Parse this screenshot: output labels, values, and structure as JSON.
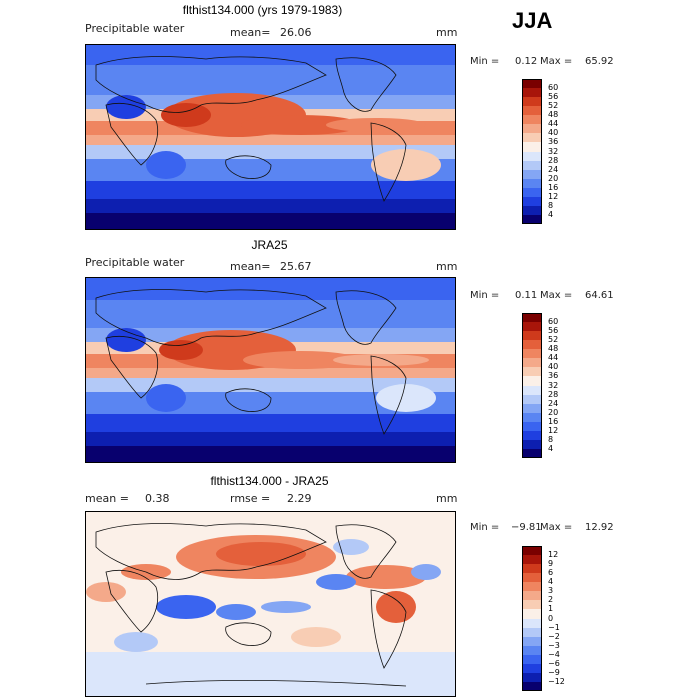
{
  "season": "JJA",
  "chart_data": [
    {
      "type": "heatmap",
      "title": "flthist134.000 (yrs 1979-1983)",
      "variable_label": "Precipitable water",
      "mean_label": "mean=",
      "mean_value": "26.06",
      "units": "mm",
      "min_label": "Min =",
      "min_value": "0.12",
      "max_label": "Max =",
      "max_value": "65.92",
      "colorbar_levels": [
        "4",
        "8",
        "12",
        "16",
        "20",
        "24",
        "28",
        "32",
        "36",
        "40",
        "44",
        "48",
        "52",
        "56",
        "60"
      ],
      "colorbar_colors": [
        "#08006e",
        "#0d1fb0",
        "#1f3fe0",
        "#3a64f0",
        "#5a85f2",
        "#84a6f4",
        "#b3c9f7",
        "#dbe6fb",
        "#fbf0e8",
        "#f8cdb4",
        "#f4a98a",
        "#ef8560",
        "#e4603b",
        "#cf3a1c",
        "#a8150a",
        "#7a0000"
      ]
    },
    {
      "type": "heatmap",
      "title": "JRA25",
      "variable_label": "Precipitable water",
      "mean_label": "mean=",
      "mean_value": "25.67",
      "units": "mm",
      "min_label": "Min =",
      "min_value": "0.11",
      "max_label": "Max =",
      "max_value": "64.61",
      "colorbar_levels": [
        "4",
        "8",
        "12",
        "16",
        "20",
        "24",
        "28",
        "32",
        "36",
        "40",
        "44",
        "48",
        "52",
        "56",
        "60"
      ],
      "colorbar_colors": [
        "#08006e",
        "#0d1fb0",
        "#1f3fe0",
        "#3a64f0",
        "#5a85f2",
        "#84a6f4",
        "#b3c9f7",
        "#dbe6fb",
        "#fbf0e8",
        "#f8cdb4",
        "#f4a98a",
        "#ef8560",
        "#e4603b",
        "#cf3a1c",
        "#a8150a",
        "#7a0000"
      ]
    },
    {
      "type": "heatmap",
      "title": "flthist134.000 - JRA25",
      "mean_label": "mean =",
      "mean_value": "0.38",
      "rmse_label": "rmse =",
      "rmse_value": "2.29",
      "units": "mm",
      "min_label": "Min =",
      "min_value": "−9.81",
      "max_label": "Max =",
      "max_value": "12.92",
      "colorbar_levels": [
        "−12",
        "−9",
        "−6",
        "−4",
        "−3",
        "−2",
        "−1",
        "0",
        "1",
        "2",
        "3",
        "4",
        "6",
        "9",
        "12"
      ],
      "colorbar_colors": [
        "#08006e",
        "#0d1fb0",
        "#1f3fe0",
        "#3a64f0",
        "#5a85f2",
        "#84a6f4",
        "#b3c9f7",
        "#dbe6fb",
        "#fbf0e8",
        "#f8cdb4",
        "#f4a98a",
        "#ef8560",
        "#e4603b",
        "#cf3a1c",
        "#a8150a",
        "#7a0000"
      ]
    }
  ]
}
